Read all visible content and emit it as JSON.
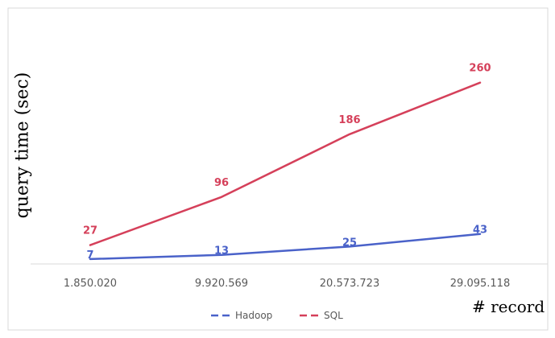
{
  "chart_data": {
    "type": "line",
    "xlabel": "# record",
    "ylabel": "query time (sec)",
    "categories": [
      "1.850.020",
      "9.920.569",
      "20.573.723",
      "29.095.118"
    ],
    "series": [
      {
        "name": "Hadoop",
        "values": [
          7,
          13,
          25,
          43
        ],
        "color": "#4a62c9",
        "line_style": "solid",
        "legend_style": "dashed"
      },
      {
        "name": "SQL",
        "values": [
          27,
          96,
          186,
          260
        ],
        "color": "#d5405a",
        "line_style": "solid",
        "legend_style": "dashed"
      }
    ],
    "ylim": [
      0,
      300
    ],
    "grid": false,
    "y_axis_visible": false,
    "data_labels": true,
    "legend_position": "bottom",
    "colors": {
      "hadoop": "#4a62c9",
      "sql": "#d5405a",
      "axis": "#d9d9d9",
      "tick_text": "#595959",
      "frame": "#d9d9d9"
    }
  }
}
